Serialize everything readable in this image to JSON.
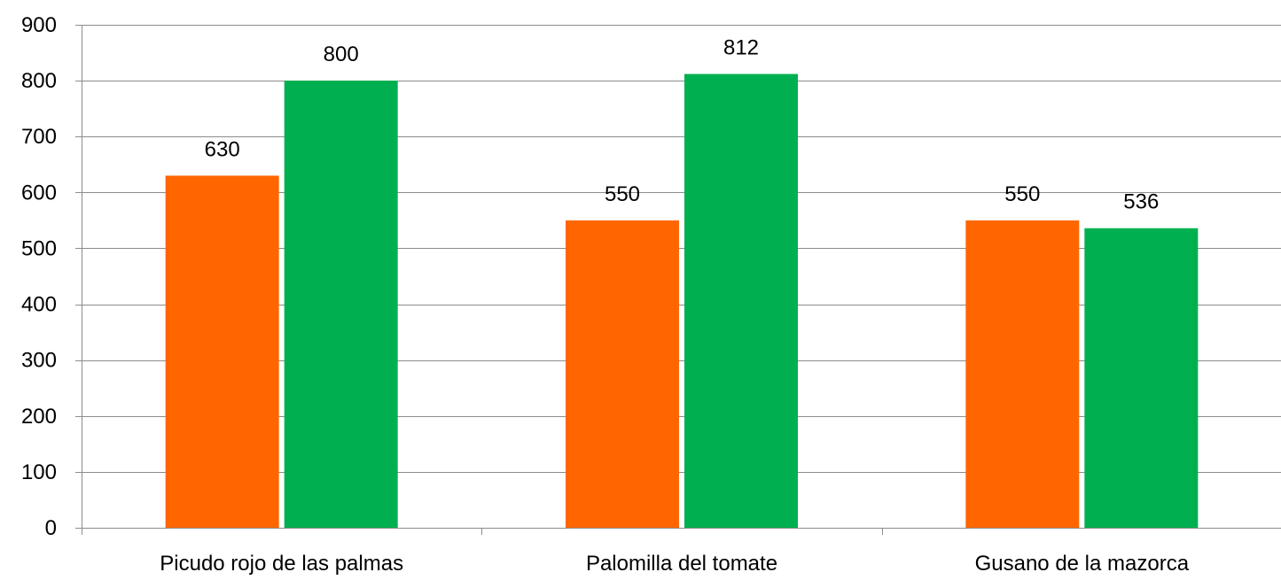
{
  "chart_data": {
    "type": "bar",
    "title": "",
    "xlabel": "",
    "ylabel": "",
    "categories": [
      "Picudo rojo de las palmas",
      "Palomilla del tomate",
      "Gusano de la mazorca"
    ],
    "series": [
      {
        "color": "#FF6600",
        "values": [
          630,
          550,
          550
        ]
      },
      {
        "color": "#00B050",
        "values": [
          800,
          812,
          536
        ]
      }
    ],
    "ylim": [
      0,
      900
    ],
    "yticks": [
      0,
      100,
      200,
      300,
      400,
      500,
      600,
      700,
      800,
      900
    ],
    "grid": true,
    "legend": "none",
    "data_labels": true
  }
}
